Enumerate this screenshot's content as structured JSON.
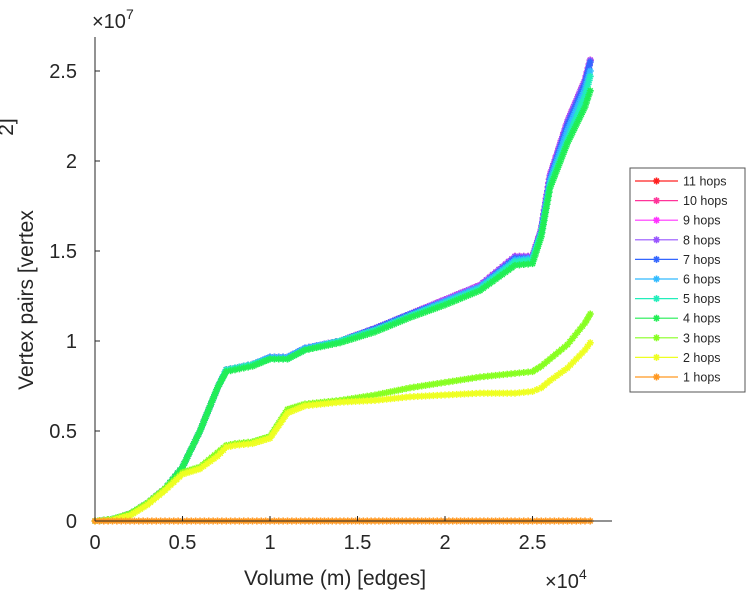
{
  "chart_data": {
    "type": "line",
    "title": "",
    "xlabel": "Volume (m) [edges]",
    "ylabel": "Vertex pairs [vertex",
    "ylabel_superscript": "2]",
    "x_exponent": {
      "base": "×10",
      "power": "4"
    },
    "y_exponent": {
      "base": "×10",
      "power": "7"
    },
    "xlim": [
      0,
      2.95
    ],
    "ylim": [
      0,
      2.69
    ],
    "xticks": [
      0,
      0.5,
      1,
      1.5,
      2,
      2.5
    ],
    "xtick_labels": [
      "0",
      "0.5",
      "1",
      "1.5",
      "2",
      "2.5"
    ],
    "yticks": [
      0,
      0.5,
      1,
      1.5,
      2,
      2.5
    ],
    "ytick_labels": [
      "0",
      "0.5",
      "1",
      "1.5",
      "2",
      "2.5"
    ],
    "grid": false,
    "legend_position": "right",
    "x": [
      0,
      0.1,
      0.2,
      0.3,
      0.4,
      0.5,
      0.6,
      0.7,
      0.75,
      0.8,
      0.9,
      1.0,
      1.1,
      1.2,
      1.4,
      1.6,
      1.8,
      2.0,
      2.2,
      2.4,
      2.5,
      2.55,
      2.6,
      2.7,
      2.8,
      2.83
    ],
    "series": [
      {
        "name": "11 hops",
        "color": "#ff2020",
        "values": [
          0,
          0.01,
          0.04,
          0.1,
          0.18,
          0.3,
          0.5,
          0.74,
          0.84,
          0.85,
          0.87,
          0.91,
          0.91,
          0.96,
          1.0,
          1.07,
          1.15,
          1.23,
          1.31,
          1.47,
          1.47,
          1.62,
          1.92,
          2.22,
          2.45,
          2.56
        ]
      },
      {
        "name": "10 hops",
        "color": "#ff3399",
        "values": [
          0,
          0.01,
          0.04,
          0.1,
          0.18,
          0.3,
          0.5,
          0.74,
          0.84,
          0.85,
          0.87,
          0.91,
          0.91,
          0.96,
          1.0,
          1.07,
          1.15,
          1.23,
          1.31,
          1.47,
          1.47,
          1.62,
          1.92,
          2.22,
          2.45,
          2.56
        ]
      },
      {
        "name": "9 hops",
        "color": "#ff33ff",
        "values": [
          0,
          0.01,
          0.04,
          0.1,
          0.18,
          0.3,
          0.5,
          0.74,
          0.84,
          0.85,
          0.87,
          0.91,
          0.91,
          0.96,
          1.0,
          1.07,
          1.15,
          1.23,
          1.31,
          1.47,
          1.47,
          1.62,
          1.92,
          2.22,
          2.45,
          2.56
        ]
      },
      {
        "name": "8 hops",
        "color": "#9955ff",
        "values": [
          0,
          0.01,
          0.04,
          0.1,
          0.18,
          0.3,
          0.5,
          0.74,
          0.84,
          0.85,
          0.87,
          0.91,
          0.91,
          0.96,
          1.0,
          1.07,
          1.15,
          1.23,
          1.31,
          1.47,
          1.47,
          1.62,
          1.92,
          2.22,
          2.45,
          2.56
        ]
      },
      {
        "name": "7 hops",
        "color": "#3366ff",
        "values": [
          0,
          0.01,
          0.04,
          0.1,
          0.18,
          0.3,
          0.5,
          0.74,
          0.84,
          0.85,
          0.87,
          0.91,
          0.91,
          0.96,
          1.0,
          1.07,
          1.15,
          1.22,
          1.3,
          1.46,
          1.46,
          1.61,
          1.9,
          2.2,
          2.43,
          2.55
        ]
      },
      {
        "name": "6 hops",
        "color": "#33bbff",
        "values": [
          0,
          0.01,
          0.04,
          0.1,
          0.18,
          0.3,
          0.5,
          0.74,
          0.84,
          0.85,
          0.87,
          0.91,
          0.91,
          0.96,
          1.0,
          1.06,
          1.14,
          1.22,
          1.3,
          1.45,
          1.46,
          1.6,
          1.89,
          2.17,
          2.4,
          2.5
        ]
      },
      {
        "name": "5 hops",
        "color": "#22eebb",
        "values": [
          0,
          0.01,
          0.04,
          0.1,
          0.18,
          0.3,
          0.5,
          0.74,
          0.84,
          0.85,
          0.87,
          0.9,
          0.9,
          0.95,
          1.0,
          1.06,
          1.14,
          1.21,
          1.29,
          1.44,
          1.45,
          1.6,
          1.87,
          2.12,
          2.36,
          2.47
        ]
      },
      {
        "name": "4 hops",
        "color": "#22ee55",
        "values": [
          0,
          0.01,
          0.04,
          0.1,
          0.18,
          0.3,
          0.5,
          0.74,
          0.83,
          0.84,
          0.86,
          0.9,
          0.9,
          0.95,
          0.99,
          1.05,
          1.13,
          1.2,
          1.28,
          1.42,
          1.43,
          1.58,
          1.85,
          2.1,
          2.3,
          2.39
        ]
      },
      {
        "name": "3 hops",
        "color": "#88ff22",
        "values": [
          0,
          0.01,
          0.04,
          0.1,
          0.18,
          0.27,
          0.3,
          0.38,
          0.42,
          0.43,
          0.44,
          0.47,
          0.62,
          0.65,
          0.67,
          0.7,
          0.74,
          0.77,
          0.8,
          0.82,
          0.83,
          0.86,
          0.9,
          0.98,
          1.1,
          1.15
        ]
      },
      {
        "name": "2 hops",
        "color": "#eeff22",
        "values": [
          0,
          0.005,
          0.03,
          0.09,
          0.17,
          0.26,
          0.29,
          0.36,
          0.41,
          0.42,
          0.43,
          0.46,
          0.6,
          0.64,
          0.66,
          0.67,
          0.69,
          0.7,
          0.71,
          0.71,
          0.72,
          0.74,
          0.78,
          0.85,
          0.95,
          0.99
        ]
      },
      {
        "name": "1 hops",
        "color": "#ff9922",
        "values": [
          0,
          0,
          0,
          0,
          0,
          0,
          0,
          0,
          0,
          0,
          0,
          0,
          0,
          0,
          0,
          0,
          0,
          0,
          0,
          0,
          0,
          0,
          0,
          0,
          0,
          0
        ]
      }
    ]
  }
}
